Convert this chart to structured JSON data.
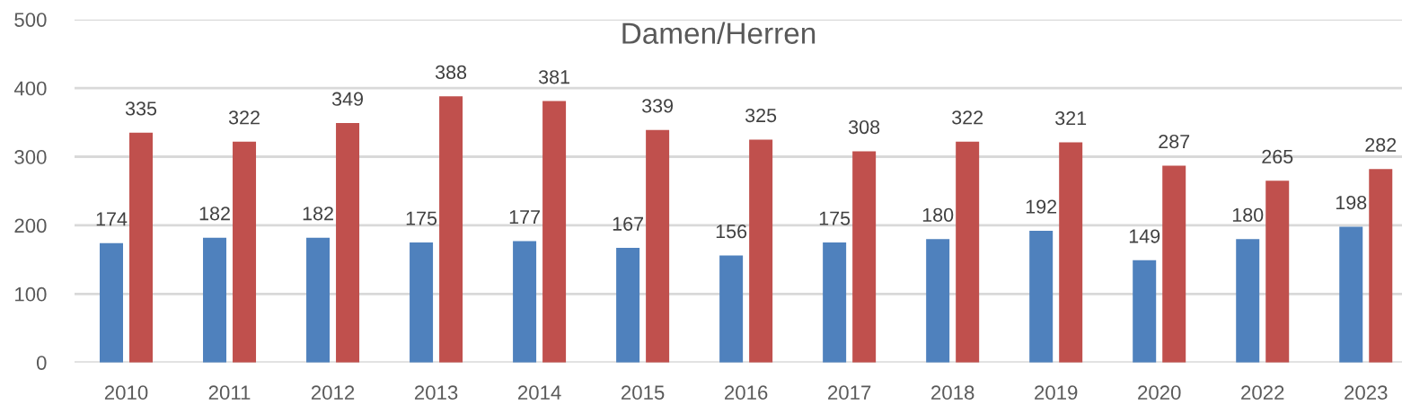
{
  "chart_data": {
    "type": "bar",
    "title": "Damen/Herren",
    "categories": [
      "2010",
      "2011",
      "2012",
      "2013",
      "2014",
      "2015",
      "2016",
      "2017",
      "2018",
      "2019",
      "2020",
      "2022",
      "2023"
    ],
    "series": [
      {
        "color": "#4f81bd",
        "values": [
          174,
          182,
          182,
          175,
          177,
          167,
          156,
          175,
          180,
          192,
          149,
          180,
          198
        ]
      },
      {
        "color": "#c0504d",
        "values": [
          335,
          322,
          349,
          388,
          381,
          339,
          325,
          308,
          322,
          321,
          287,
          265,
          282
        ]
      }
    ],
    "ylim": [
      0,
      500
    ],
    "yticks": [
      0,
      100,
      200,
      300,
      400,
      500
    ],
    "grid": "y",
    "data_labels": true
  }
}
